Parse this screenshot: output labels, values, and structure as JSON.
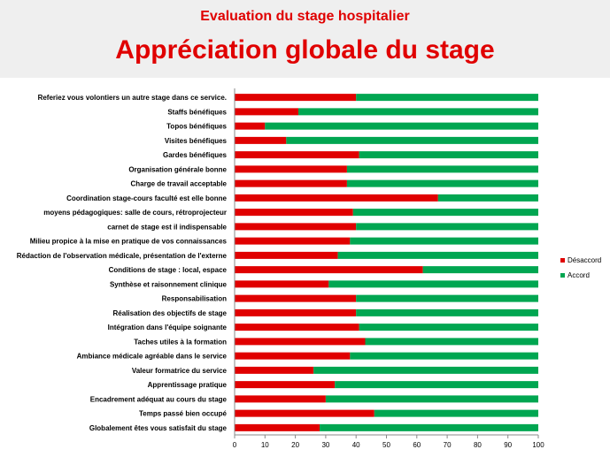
{
  "header": {
    "subtitle": "Evaluation du stage hospitalier",
    "title": "Appréciation globale du stage"
  },
  "chart_data": {
    "type": "bar",
    "orientation": "horizontal",
    "stacked": true,
    "categories": [
      "Referiez vous volontiers un autre stage dans ce service.",
      "Staffs bénéfiques",
      "Topos bénéfiques",
      "Visites bénéfiques",
      "Gardes bénéfiques",
      "Organisation générale bonne",
      "Charge de travail acceptable",
      "Coordination stage-cours faculté est elle bonne",
      "moyens pédagogiques: salle de cours, rétroprojecteur",
      "carnet de stage est il indispensable",
      "Milieu propice à la mise en pratique de vos connaissances",
      "Rédaction de l'observation médicale, présentation de l'externe",
      "Conditions de stage : local, espace",
      "Synthèse et raisonnement clinique",
      "Responsabilisation",
      "Réalisation des objectifs de stage",
      "Intégration dans l'équipe soignante",
      "Taches utiles à la formation",
      "Ambiance médicale agréable dans le service",
      "Valeur formatrice du service",
      "Apprentissage pratique",
      "Encadrement adéquat au cours du stage",
      "Temps passé bien occupé",
      "Globalement êtes vous satisfait du stage"
    ],
    "series": [
      {
        "name": "Désaccord",
        "color": "#e00000",
        "values": [
          40,
          21,
          10,
          17,
          41,
          37,
          37,
          67,
          39,
          40,
          38,
          34,
          62,
          31,
          40,
          40,
          41,
          43,
          38,
          26,
          33,
          30,
          46,
          28
        ]
      },
      {
        "name": "Accord",
        "color": "#00a651",
        "values": [
          60,
          79,
          90,
          83,
          59,
          63,
          63,
          33,
          61,
          60,
          62,
          66,
          38,
          69,
          60,
          60,
          59,
          57,
          62,
          74,
          67,
          70,
          54,
          72
        ]
      }
    ],
    "xlim": [
      0,
      100
    ],
    "xticks": [
      0,
      10,
      20,
      30,
      40,
      50,
      60,
      70,
      80,
      90,
      100
    ],
    "legend_position": "right",
    "grid": false
  }
}
